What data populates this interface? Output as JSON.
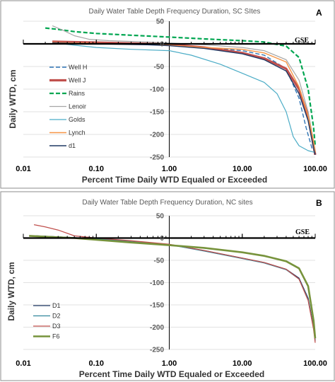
{
  "chart_data": [
    {
      "type": "line",
      "panel_label": "A",
      "title": "Daily Water Table Depth Frequency Duration, SC SItes",
      "xlabel": "Percent Time Daily WTD Equaled or Exceeded",
      "ylabel": "Daily WTD, cm",
      "x_scale": "log",
      "xlim": [
        0.01,
        100
      ],
      "ylim": [
        -250,
        50
      ],
      "x_ticks": [
        "0.01",
        "0.10",
        "1.00",
        "10.00",
        "100.00"
      ],
      "y_ticks": [
        50,
        0,
        -50,
        -100,
        -150,
        -200,
        -250
      ],
      "grid": "horizontal",
      "gse_label": "GSE",
      "legend_position": "left",
      "series": [
        {
          "name": "Well H",
          "color": "#2e75b6",
          "dash": "6,3",
          "width": 1.4,
          "points": [
            [
              0.025,
              5
            ],
            [
              0.1,
              3
            ],
            [
              0.5,
              0
            ],
            [
              1,
              -3
            ],
            [
              3,
              -8
            ],
            [
              10,
              -15
            ],
            [
              20,
              -25
            ],
            [
              40,
              -55
            ],
            [
              60,
              -120
            ],
            [
              75,
              -185
            ],
            [
              90,
              -230
            ],
            [
              100,
              -240
            ]
          ]
        },
        {
          "name": "Well J",
          "color": "#c0504d",
          "dash": "",
          "width": 3.2,
          "points": [
            [
              0.025,
              5
            ],
            [
              0.1,
              3
            ],
            [
              0.3,
              1
            ],
            [
              1,
              -1
            ],
            [
              3,
              -8
            ],
            [
              10,
              -20
            ],
            [
              20,
              -32
            ],
            [
              40,
              -55
            ],
            [
              60,
              -100
            ],
            [
              80,
              -160
            ],
            [
              95,
              -225
            ],
            [
              100,
              -245
            ]
          ]
        },
        {
          "name": "Rains",
          "color": "#00a651",
          "dash": "6,3",
          "width": 2.2,
          "points": [
            [
              0.02,
              35
            ],
            [
              0.03,
              32
            ],
            [
              0.05,
              27
            ],
            [
              0.1,
              23
            ],
            [
              0.3,
              19
            ],
            [
              1,
              15
            ],
            [
              3,
              11
            ],
            [
              10,
              7
            ],
            [
              20,
              4
            ],
            [
              40,
              -5
            ],
            [
              60,
              -30
            ],
            [
              80,
              -100
            ],
            [
              95,
              -185
            ],
            [
              100,
              -225
            ]
          ]
        },
        {
          "name": "Lenoir",
          "color": "#a6a6a6",
          "dash": "",
          "width": 1.2,
          "points": [
            [
              0.025,
              40
            ],
            [
              0.035,
              30
            ],
            [
              0.05,
              18
            ],
            [
              0.08,
              10
            ],
            [
              0.15,
              7
            ],
            [
              0.5,
              4
            ],
            [
              1,
              2
            ],
            [
              3,
              -2
            ],
            [
              10,
              -8
            ],
            [
              20,
              -15
            ],
            [
              40,
              -35
            ],
            [
              60,
              -80
            ],
            [
              80,
              -150
            ],
            [
              95,
              -215
            ],
            [
              100,
              -235
            ]
          ]
        },
        {
          "name": "Golds",
          "color": "#4bacc6",
          "dash": "",
          "width": 1.2,
          "points": [
            [
              0.025,
              3
            ],
            [
              0.05,
              -3
            ],
            [
              0.1,
              -8
            ],
            [
              0.3,
              -12
            ],
            [
              1,
              -15
            ],
            [
              2,
              -25
            ],
            [
              5,
              -45
            ],
            [
              10,
              -65
            ],
            [
              20,
              -85
            ],
            [
              30,
              -110
            ],
            [
              40,
              -150
            ],
            [
              50,
              -205
            ],
            [
              60,
              -225
            ],
            [
              80,
              -236
            ],
            [
              100,
              -240
            ]
          ]
        },
        {
          "name": "Lynch",
          "color": "#f79646",
          "dash": "",
          "width": 1.4,
          "points": [
            [
              0.025,
              3
            ],
            [
              0.1,
              1
            ],
            [
              0.5,
              -1
            ],
            [
              1,
              -3
            ],
            [
              3,
              -8
            ],
            [
              10,
              -12
            ],
            [
              20,
              -20
            ],
            [
              40,
              -40
            ],
            [
              60,
              -95
            ],
            [
              80,
              -160
            ],
            [
              95,
              -215
            ],
            [
              100,
              -240
            ]
          ]
        },
        {
          "name": "d1",
          "color": "#1f3864",
          "dash": "",
          "width": 1.4,
          "points": [
            [
              0.025,
              2
            ],
            [
              0.1,
              0
            ],
            [
              0.5,
              -2
            ],
            [
              1,
              -4
            ],
            [
              3,
              -10
            ],
            [
              10,
              -22
            ],
            [
              20,
              -35
            ],
            [
              40,
              -60
            ],
            [
              60,
              -110
            ],
            [
              80,
              -170
            ],
            [
              95,
              -230
            ],
            [
              100,
              -245
            ]
          ]
        }
      ]
    },
    {
      "type": "line",
      "panel_label": "B",
      "title": "Daily Water Table Depth Frequency Duration,  NC sites",
      "xlabel": "Percent Time Daily WTD Equaled or Exceeded",
      "ylabel": "Daily WTD, cm",
      "x_scale": "log",
      "xlim": [
        0.01,
        100
      ],
      "ylim": [
        -250,
        50
      ],
      "x_ticks": [
        "0.01",
        "0.10",
        "1.00",
        "10.00",
        "100.00"
      ],
      "y_ticks": [
        50,
        0,
        -50,
        -100,
        -150,
        -200,
        -250
      ],
      "grid": "horizontal",
      "gse_label": "GSE",
      "legend_position": "bottom-left",
      "series": [
        {
          "name": "D1",
          "color": "#1f3864",
          "dash": "",
          "width": 1.3,
          "points": [
            [
              0.015,
              5
            ],
            [
              0.05,
              1
            ],
            [
              0.1,
              -2
            ],
            [
              0.3,
              -7
            ],
            [
              1,
              -15
            ],
            [
              3,
              -28
            ],
            [
              10,
              -45
            ],
            [
              20,
              -55
            ],
            [
              40,
              -70
            ],
            [
              60,
              -90
            ],
            [
              80,
              -135
            ],
            [
              95,
              -200
            ],
            [
              100,
              -230
            ]
          ]
        },
        {
          "name": "D2",
          "color": "#31859c",
          "dash": "",
          "width": 1.3,
          "points": [
            [
              0.015,
              5
            ],
            [
              0.05,
              1
            ],
            [
              0.1,
              -2
            ],
            [
              0.3,
              -7
            ],
            [
              1,
              -15
            ],
            [
              3,
              -29
            ],
            [
              10,
              -46
            ],
            [
              20,
              -56
            ],
            [
              40,
              -71
            ],
            [
              60,
              -92
            ],
            [
              80,
              -138
            ],
            [
              95,
              -202
            ],
            [
              100,
              -230
            ]
          ]
        },
        {
          "name": "D3",
          "color": "#c0504d",
          "dash": "",
          "width": 1.3,
          "points": [
            [
              0.014,
              30
            ],
            [
              0.02,
              25
            ],
            [
              0.03,
              18
            ],
            [
              0.05,
              5
            ],
            [
              0.1,
              0
            ],
            [
              0.3,
              -6
            ],
            [
              1,
              -14
            ],
            [
              3,
              -28
            ],
            [
              10,
              -45
            ],
            [
              20,
              -55
            ],
            [
              40,
              -70
            ],
            [
              60,
              -92
            ],
            [
              80,
              -140
            ],
            [
              95,
              -205
            ],
            [
              100,
              -235
            ]
          ]
        },
        {
          "name": "F6",
          "color": "#77933c",
          "dash": "",
          "width": 2.6,
          "points": [
            [
              0.012,
              5
            ],
            [
              0.05,
              0
            ],
            [
              0.1,
              -4
            ],
            [
              0.3,
              -10
            ],
            [
              1,
              -16
            ],
            [
              3,
              -22
            ],
            [
              10,
              -32
            ],
            [
              20,
              -40
            ],
            [
              40,
              -52
            ],
            [
              60,
              -68
            ],
            [
              80,
              -108
            ],
            [
              95,
              -185
            ],
            [
              100,
              -225
            ]
          ]
        }
      ]
    }
  ]
}
